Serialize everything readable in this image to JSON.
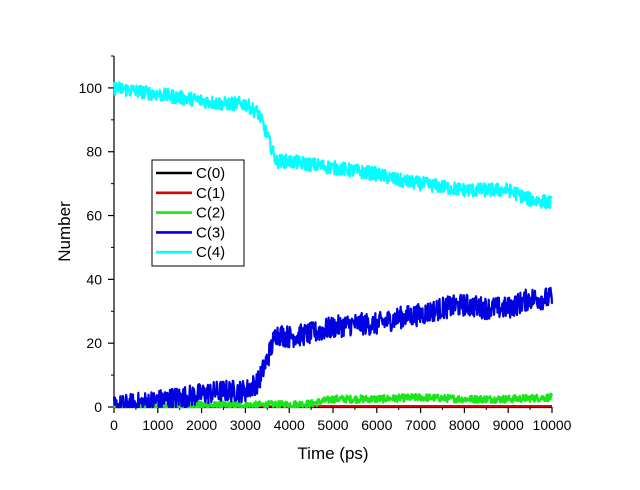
{
  "chart_data": {
    "type": "line",
    "title": "",
    "xlabel": "Time (ps)",
    "ylabel": "Number",
    "xlim": [
      0,
      10000
    ],
    "ylim": [
      0,
      110
    ],
    "xticks": [
      0,
      1000,
      2000,
      3000,
      4000,
      5000,
      6000,
      7000,
      8000,
      9000,
      10000
    ],
    "yticks": [
      0,
      20,
      40,
      60,
      80,
      100
    ],
    "grid": false,
    "legend_position": "center-left",
    "series": [
      {
        "name": "C(0)",
        "color": "#000000",
        "x": [
          0,
          10000
        ],
        "values": [
          0,
          0
        ]
      },
      {
        "name": "C(1)",
        "color": "#e00000",
        "x": [
          0,
          4900,
          5000,
          6500,
          6520,
          10000
        ],
        "values": [
          0,
          0,
          0.3,
          0.3,
          1,
          0.3
        ]
      },
      {
        "name": "C(2)",
        "color": "#19e619",
        "x": [
          0,
          1000,
          2000,
          3000,
          4000,
          4500,
          5000,
          6000,
          7000,
          8000,
          9000,
          10000
        ],
        "values": [
          0,
          0,
          0.5,
          0.5,
          0.8,
          1,
          2.5,
          2.5,
          3,
          2.5,
          2.5,
          3
        ]
      },
      {
        "name": "C(3)",
        "color": "#0000e0",
        "x": [
          0,
          500,
          1000,
          1500,
          2000,
          2500,
          3000,
          3300,
          3500,
          3700,
          4000,
          4500,
          5000,
          5500,
          6000,
          6500,
          7000,
          7500,
          8000,
          8500,
          9000,
          9500,
          10000
        ],
        "values": [
          0,
          1,
          2,
          3,
          4,
          5,
          5,
          8,
          15,
          23,
          22,
          23,
          25,
          26,
          26,
          28,
          29,
          31,
          32,
          31,
          31,
          34,
          34
        ]
      },
      {
        "name": "C(4)",
        "color": "#00ffff",
        "x": [
          0,
          500,
          1000,
          1500,
          2000,
          2500,
          3000,
          3300,
          3500,
          3700,
          4000,
          4500,
          5000,
          5500,
          6000,
          6500,
          7000,
          7500,
          8000,
          8500,
          9000,
          9500,
          10000
        ],
        "values": [
          100,
          99,
          98,
          97,
          96,
          95,
          95,
          92,
          85,
          77,
          77,
          76,
          75,
          74,
          73,
          71,
          70,
          69,
          68,
          68,
          68,
          65,
          64
        ]
      }
    ]
  }
}
